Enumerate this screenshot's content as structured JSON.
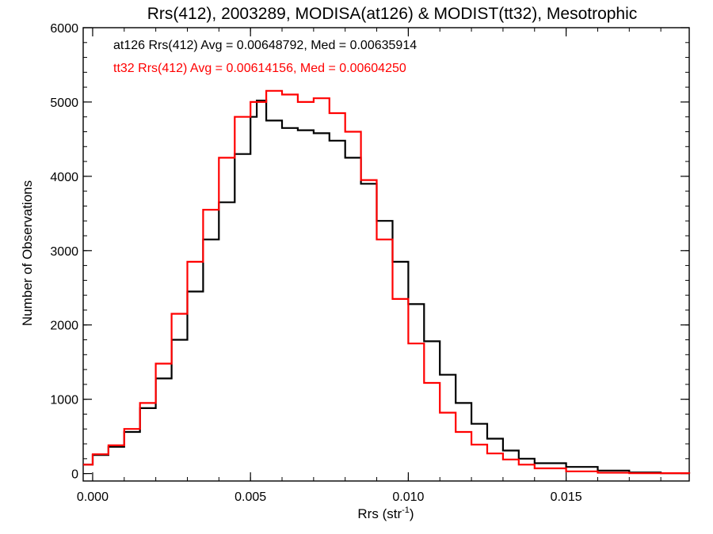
{
  "chart_data": {
    "type": "line",
    "title": "Rrs(412), 2003289, MODISA(at126) & MODIST(tt32), Mesotrophic",
    "xlabel": "Rrs (str",
    "xlabel_sup": "-1",
    "xlabel_end": ")",
    "ylabel": "Number of Observations",
    "xlim": [
      -0.0003,
      0.0189
    ],
    "ylim": [
      -100,
      6000
    ],
    "xticks": [
      0.0,
      0.005,
      0.01,
      0.015
    ],
    "xtick_labels": [
      "0.000",
      "0.005",
      "0.010",
      "0.015"
    ],
    "yticks": [
      0,
      1000,
      2000,
      3000,
      4000,
      5000,
      6000
    ],
    "ytick_labels": [
      "0",
      "1000",
      "2000",
      "3000",
      "4000",
      "5000",
      "6000"
    ],
    "grid": false,
    "legend_placement": "top-left",
    "series": [
      {
        "name": "at126",
        "color": "#000000",
        "annotation": "at126 Rrs(412) Avg = 0.00648792, Med = 0.00635914",
        "points": [
          [
            -0.0003,
            120
          ],
          [
            0.0,
            250
          ],
          [
            0.0005,
            360
          ],
          [
            0.001,
            560
          ],
          [
            0.0015,
            880
          ],
          [
            0.002,
            1280
          ],
          [
            0.0025,
            1800
          ],
          [
            0.003,
            2450
          ],
          [
            0.0035,
            3150
          ],
          [
            0.004,
            3650
          ],
          [
            0.0045,
            4300
          ],
          [
            0.005,
            4800
          ],
          [
            0.0052,
            5020
          ],
          [
            0.0055,
            4750
          ],
          [
            0.006,
            4650
          ],
          [
            0.0065,
            4620
          ],
          [
            0.007,
            4580
          ],
          [
            0.0075,
            4480
          ],
          [
            0.008,
            4250
          ],
          [
            0.0085,
            3900
          ],
          [
            0.009,
            3400
          ],
          [
            0.0095,
            2850
          ],
          [
            0.01,
            2280
          ],
          [
            0.0105,
            1780
          ],
          [
            0.011,
            1330
          ],
          [
            0.0115,
            950
          ],
          [
            0.012,
            670
          ],
          [
            0.0125,
            470
          ],
          [
            0.013,
            310
          ],
          [
            0.0135,
            200
          ],
          [
            0.014,
            140
          ],
          [
            0.015,
            90
          ],
          [
            0.016,
            40
          ],
          [
            0.017,
            15
          ],
          [
            0.018,
            5
          ],
          [
            0.0189,
            0
          ]
        ]
      },
      {
        "name": "tt32",
        "color": "#ff0000",
        "annotation": "tt32 Rrs(412) Avg = 0.00614156, Med = 0.00604250",
        "points": [
          [
            -0.0003,
            120
          ],
          [
            0.0,
            260
          ],
          [
            0.0005,
            380
          ],
          [
            0.001,
            600
          ],
          [
            0.0015,
            950
          ],
          [
            0.002,
            1480
          ],
          [
            0.0025,
            2150
          ],
          [
            0.003,
            2850
          ],
          [
            0.0035,
            3550
          ],
          [
            0.004,
            4250
          ],
          [
            0.0045,
            4800
          ],
          [
            0.005,
            5000
          ],
          [
            0.0055,
            5150
          ],
          [
            0.006,
            5100
          ],
          [
            0.0065,
            5000
          ],
          [
            0.007,
            5050
          ],
          [
            0.0075,
            4850
          ],
          [
            0.008,
            4600
          ],
          [
            0.0085,
            3950
          ],
          [
            0.009,
            3150
          ],
          [
            0.0095,
            2350
          ],
          [
            0.01,
            1750
          ],
          [
            0.0105,
            1220
          ],
          [
            0.011,
            820
          ],
          [
            0.0115,
            560
          ],
          [
            0.012,
            390
          ],
          [
            0.0125,
            270
          ],
          [
            0.013,
            190
          ],
          [
            0.0135,
            120
          ],
          [
            0.014,
            70
          ],
          [
            0.015,
            30
          ],
          [
            0.016,
            12
          ],
          [
            0.017,
            5
          ],
          [
            0.0189,
            0
          ]
        ]
      }
    ]
  }
}
